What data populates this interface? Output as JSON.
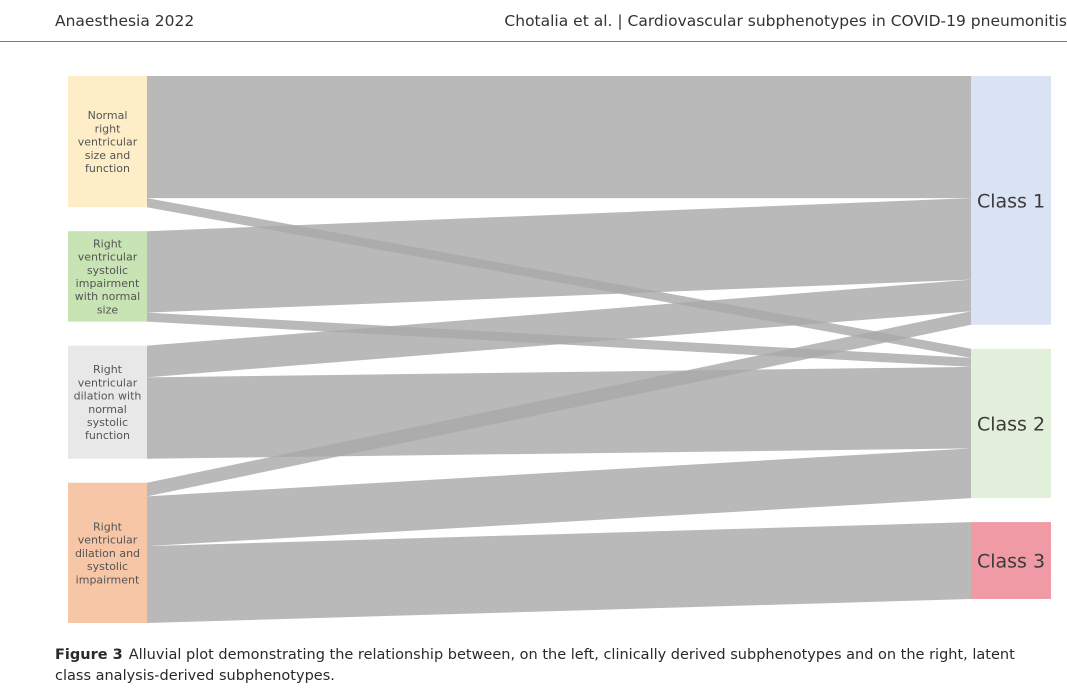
{
  "header": {
    "journal": "Anaesthesia 2022",
    "article": "Chotalia et al.  |  Cardiovascular subphenotypes in COVID-19 pneumonitis"
  },
  "chart_data": {
    "type": "alluvial",
    "left_nodes": [
      {
        "id": "normal",
        "label": "Normal right ventricular size and function",
        "lines": [
          "Normal",
          "right",
          "ventricular",
          "size and",
          "function"
        ],
        "color": "#fdeec7",
        "value": 14.5
      },
      {
        "id": "rvsi",
        "label": "Right ventricular systolic impairment with normal size",
        "lines": [
          "Right",
          "ventricular",
          "systolic",
          "impairment",
          "with normal",
          "size"
        ],
        "color": "#c8e3b4",
        "value": 10.0
      },
      {
        "id": "rvd",
        "label": "Right ventricular dilation with normal systolic function",
        "lines": [
          "Right",
          "ventricular",
          "dilation with",
          "normal",
          "systolic",
          "function"
        ],
        "color": "#e8e8e8",
        "value": 12.5
      },
      {
        "id": "rvdsi",
        "label": "Right ventricular dilation and systolic impairment",
        "lines": [
          "Right",
          "ventricular",
          "dilation and",
          "systolic",
          "impairment"
        ],
        "color": "#f6c6a6",
        "value": 15.5
      }
    ],
    "right_nodes": [
      {
        "id": "c1",
        "label": "Class 1",
        "color": "#dae3f3",
        "value": 27.5
      },
      {
        "id": "c2",
        "label": "Class 2",
        "color": "#e2efda",
        "value": 16.5
      },
      {
        "id": "c3",
        "label": "Class 3",
        "color": "#f09aa6",
        "value": 8.5
      }
    ],
    "flows": [
      {
        "from": "normal",
        "to": "c1",
        "value": 13.5
      },
      {
        "from": "normal",
        "to": "c2",
        "value": 1.0
      },
      {
        "from": "rvsi",
        "to": "c1",
        "value": 9.0
      },
      {
        "from": "rvsi",
        "to": "c2",
        "value": 1.0
      },
      {
        "from": "rvd",
        "to": "c1",
        "value": 3.5
      },
      {
        "from": "rvd",
        "to": "c2",
        "value": 9.0
      },
      {
        "from": "rvdsi",
        "to": "c1",
        "value": 1.5
      },
      {
        "from": "rvdsi",
        "to": "c2",
        "value": 5.5
      },
      {
        "from": "rvdsi",
        "to": "c3",
        "value": 8.5
      }
    ],
    "flow_color": "#a9a9a9"
  },
  "caption": {
    "label": "Figure 3",
    "text": "Alluvial plot demonstrating the relationship between, on the left, clinically derived subphenotypes and on the right, latent class analysis-derived subphenotypes."
  }
}
